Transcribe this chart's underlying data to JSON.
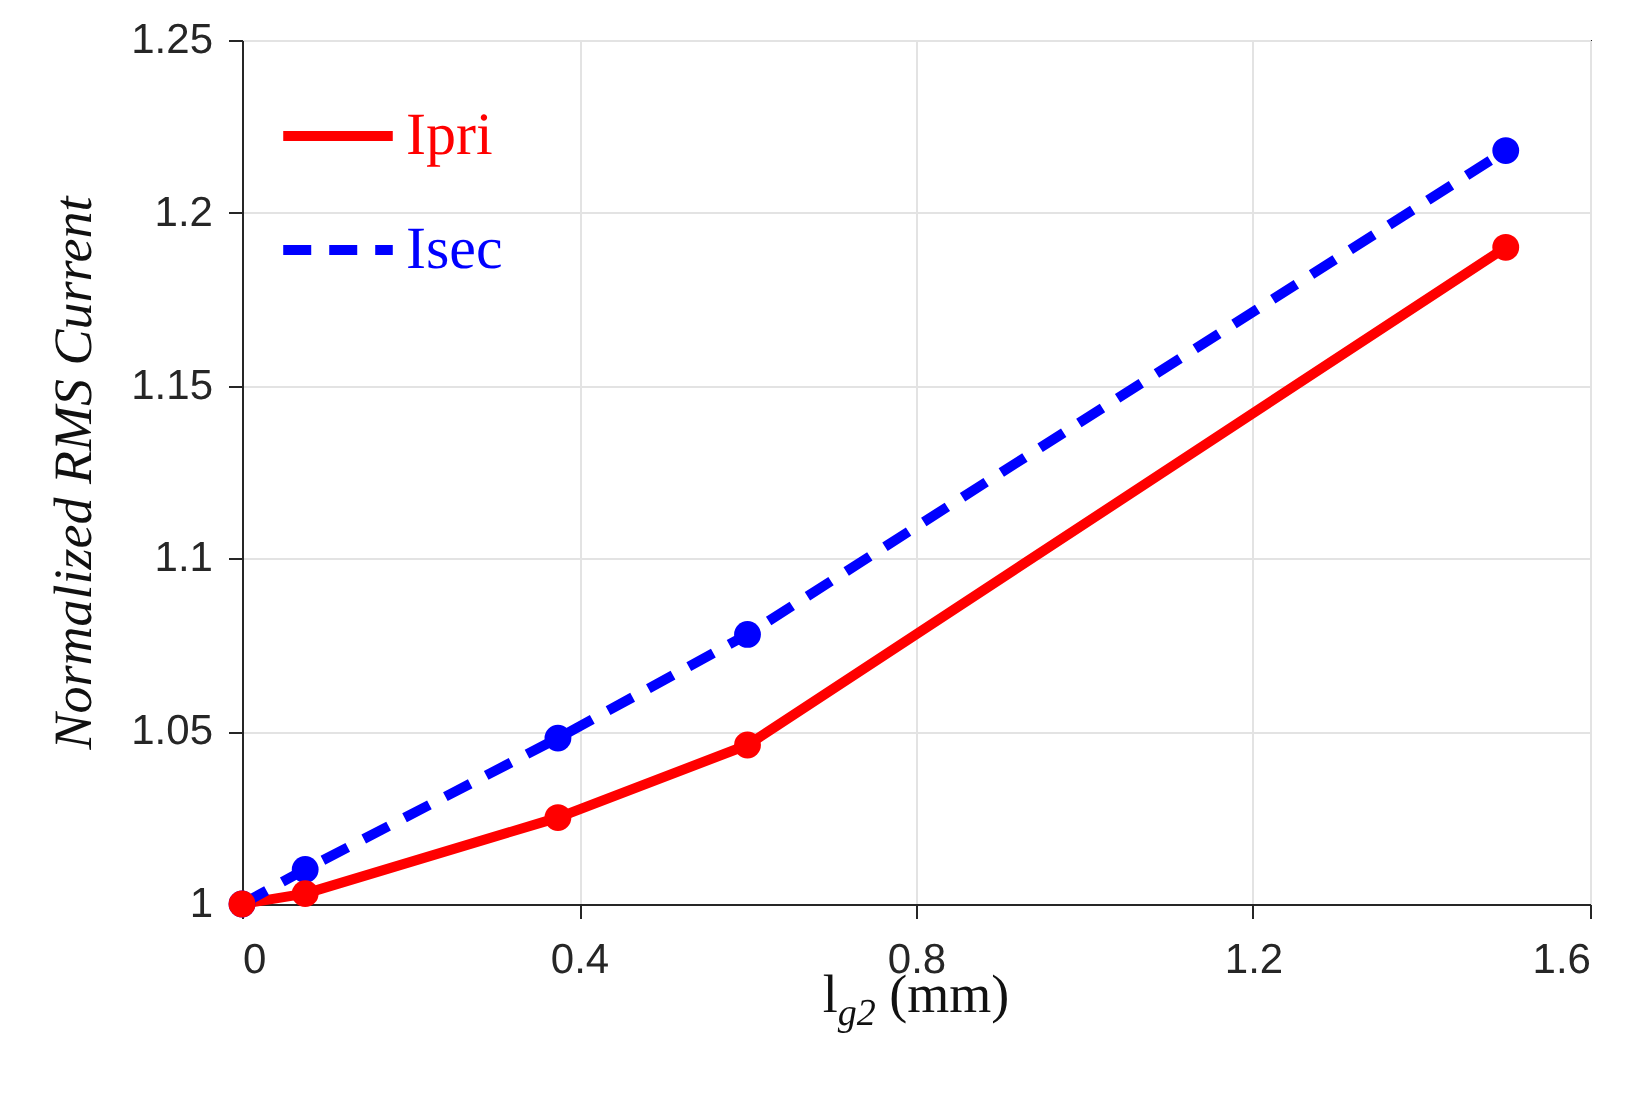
{
  "chart_data": {
    "type": "line",
    "xlabel": "l$_{g2}$ (mm)",
    "ylabel": "Normalized RMS Current",
    "x": [
      0,
      0.075,
      0.375,
      0.6,
      1.5
    ],
    "series": [
      {
        "name": "Ipri",
        "color": "#ff0000",
        "line_style": "solid",
        "values": [
          1,
          1.003,
          1.025,
          1.046,
          1.19
        ]
      },
      {
        "name": "Isec",
        "color": "#0000ff",
        "line_style": "dashed",
        "values": [
          1,
          1.01,
          1.048,
          1.078,
          1.218
        ]
      }
    ],
    "xlim": [
      0,
      1.6
    ],
    "xticks": [
      0,
      0.4,
      0.8,
      1.2,
      1.6
    ],
    "ylim": [
      1,
      1.25
    ],
    "yticks": [
      1,
      1.05,
      1.1,
      1.15,
      1.2,
      1.25
    ],
    "grid": true,
    "legend": "top left",
    "marker": "circle"
  }
}
